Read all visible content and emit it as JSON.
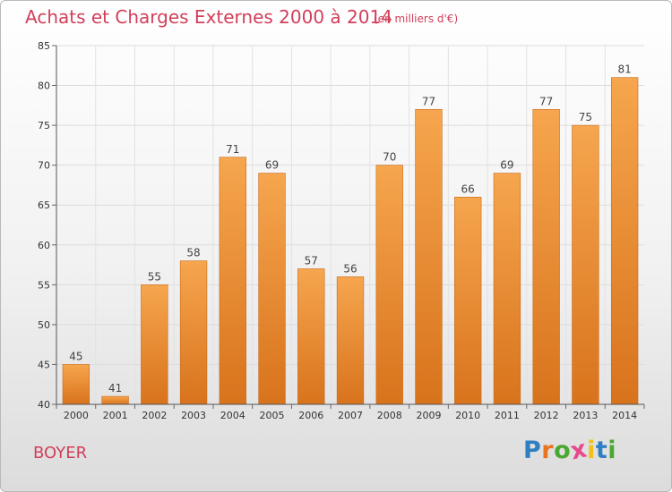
{
  "header": {
    "title": "Achats et Charges Externes 2000 à 2014",
    "subtitle": "(en milliers d'€)"
  },
  "footer": {
    "commune": "BOYER",
    "brand": [
      "P",
      "r",
      "o",
      "x",
      "i",
      "t",
      "i"
    ]
  },
  "colors": {
    "title": "#d13f5a",
    "bar_top": "#f6a64e",
    "bar_bottom": "#d8731c",
    "brand": [
      "#2f7fc2",
      "#e8741e",
      "#4aa832",
      "#e64b8c",
      "#f2c018",
      "#2f7fc2",
      "#4aa832"
    ]
  },
  "chart_data": {
    "type": "bar",
    "title": "Achats et Charges Externes 2000 à 2014",
    "subtitle": "(en milliers d'€)",
    "categories": [
      "2000",
      "2001",
      "2002",
      "2003",
      "2004",
      "2005",
      "2006",
      "2007",
      "2008",
      "2009",
      "2010",
      "2011",
      "2012",
      "2013",
      "2014"
    ],
    "values": [
      45,
      41,
      55,
      58,
      71,
      69,
      57,
      56,
      70,
      77,
      66,
      69,
      77,
      75,
      81
    ],
    "ylim": [
      40,
      85
    ],
    "yticks": [
      "40",
      "45",
      "50",
      "55",
      "60",
      "65",
      "70",
      "75",
      "80",
      "85"
    ],
    "grid": true,
    "legend": "none"
  }
}
